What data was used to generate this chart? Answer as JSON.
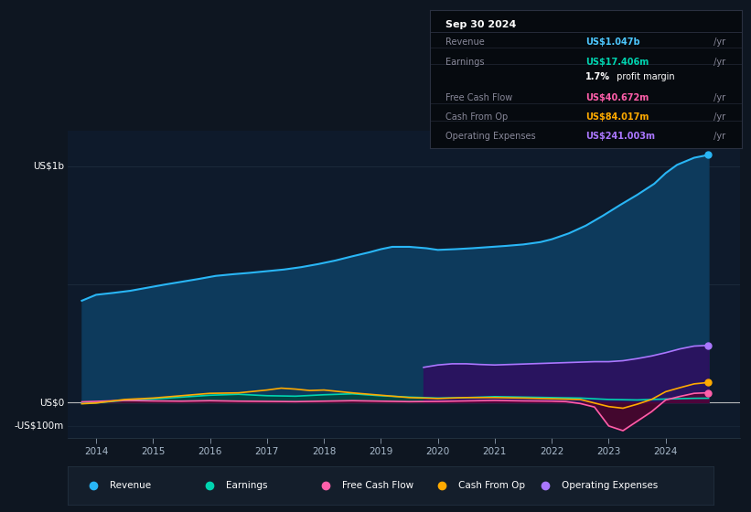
{
  "bg_color": "#0e1621",
  "plot_bg_color": "#0e1a2b",
  "title": "Sep 30 2024",
  "info_box": {
    "bg": "#060a0f",
    "title_color": "#ffffff",
    "label_color": "#888899",
    "value_color_white": "#ffffff",
    "rows": [
      {
        "label": "Revenue",
        "value": "US$1.047b",
        "suffix": " /yr",
        "value_color": "#4dc8ff"
      },
      {
        "label": "Earnings",
        "value": "US$17.406m",
        "suffix": " /yr",
        "value_color": "#00d4b0"
      },
      {
        "label": "",
        "value": "1.7%",
        "suffix": " profit margin",
        "value_color": "#ffffff"
      },
      {
        "label": "Free Cash Flow",
        "value": "US$40.672m",
        "suffix": " /yr",
        "value_color": "#ff5faa"
      },
      {
        "label": "Cash From Op",
        "value": "US$84.017m",
        "suffix": " /yr",
        "value_color": "#ffaa00"
      },
      {
        "label": "Operating Expenses",
        "value": "US$241.003m",
        "suffix": " /yr",
        "value_color": "#aa77ff"
      }
    ]
  },
  "ylabel_top": "US$1b",
  "ylabel_zero": "US$0",
  "ylabel_neg": "-US$100m",
  "xlim": [
    2013.5,
    2025.3
  ],
  "ylim": [
    -150000000,
    1150000000
  ],
  "xticks": [
    2014,
    2015,
    2016,
    2017,
    2018,
    2019,
    2020,
    2021,
    2022,
    2023,
    2024
  ],
  "revenue_color": "#29b6f6",
  "revenue_fill": "#0d3a5c",
  "earnings_color": "#00d4b0",
  "earnings_fill": "#004840",
  "fcf_color": "#ff5faa",
  "fcf_fill": "#5a0030",
  "cashop_color": "#ffaa00",
  "opex_color": "#aa77ff",
  "opex_fill": "#2d1060",
  "grid_color": "#1e2d3d",
  "zero_line_color": "#cccccc",
  "legend_bg": "#141e2b",
  "legend_border": "#22303f",
  "revenue_data_x": [
    2013.75,
    2014.0,
    2014.3,
    2014.6,
    2014.9,
    2015.2,
    2015.5,
    2015.8,
    2016.1,
    2016.4,
    2016.7,
    2017.0,
    2017.3,
    2017.6,
    2017.9,
    2018.2,
    2018.5,
    2018.8,
    2019.0,
    2019.2,
    2019.5,
    2019.8,
    2020.0,
    2020.3,
    2020.6,
    2020.9,
    2021.2,
    2021.5,
    2021.8,
    2022.0,
    2022.3,
    2022.6,
    2022.9,
    2023.2,
    2023.5,
    2023.8,
    2024.0,
    2024.2,
    2024.5,
    2024.75
  ],
  "revenue_data_y": [
    430,
    455,
    463,
    472,
    485,
    498,
    510,
    522,
    535,
    542,
    548,
    555,
    562,
    572,
    585,
    600,
    618,
    635,
    648,
    658,
    658,
    652,
    645,
    648,
    652,
    657,
    662,
    668,
    678,
    690,
    715,
    748,
    790,
    835,
    878,
    925,
    970,
    1005,
    1035,
    1047
  ],
  "earnings_data_x": [
    2013.75,
    2014.0,
    2014.5,
    2015.0,
    2015.5,
    2016.0,
    2016.5,
    2017.0,
    2017.5,
    2018.0,
    2018.5,
    2019.0,
    2019.5,
    2020.0,
    2020.5,
    2021.0,
    2021.5,
    2022.0,
    2022.5,
    2023.0,
    2023.5,
    2024.0,
    2024.5,
    2024.75
  ],
  "earnings_data_y": [
    -5,
    -2,
    8,
    14,
    22,
    30,
    34,
    28,
    26,
    32,
    36,
    28,
    22,
    18,
    20,
    24,
    22,
    20,
    18,
    12,
    10,
    14,
    17,
    17.406
  ],
  "fcf_data_x": [
    2013.75,
    2014.0,
    2014.5,
    2015.0,
    2015.5,
    2016.0,
    2016.5,
    2017.0,
    2017.5,
    2018.0,
    2018.5,
    2019.0,
    2019.5,
    2020.0,
    2020.5,
    2021.0,
    2021.5,
    2022.0,
    2022.25,
    2022.5,
    2022.75,
    2023.0,
    2023.25,
    2023.5,
    2023.75,
    2024.0,
    2024.25,
    2024.5,
    2024.75
  ],
  "fcf_data_y": [
    2,
    4,
    8,
    6,
    5,
    7,
    5,
    4,
    3,
    5,
    7,
    5,
    3,
    4,
    6,
    8,
    6,
    5,
    3,
    -5,
    -20,
    -100,
    -120,
    -80,
    -40,
    10,
    25,
    38,
    40.672
  ],
  "cashop_data_x": [
    2013.75,
    2014.0,
    2014.5,
    2015.0,
    2015.5,
    2016.0,
    2016.5,
    2017.0,
    2017.25,
    2017.5,
    2017.75,
    2018.0,
    2018.25,
    2018.5,
    2018.75,
    2019.0,
    2019.25,
    2019.5,
    2019.75,
    2020.0,
    2020.5,
    2021.0,
    2021.5,
    2022.0,
    2022.5,
    2023.0,
    2023.25,
    2023.5,
    2023.75,
    2024.0,
    2024.25,
    2024.5,
    2024.75
  ],
  "cashop_data_y": [
    -6,
    -3,
    12,
    18,
    28,
    38,
    40,
    52,
    60,
    56,
    50,
    52,
    46,
    40,
    35,
    30,
    25,
    20,
    18,
    16,
    20,
    20,
    18,
    15,
    12,
    -18,
    -25,
    -8,
    12,
    45,
    62,
    78,
    84.017
  ],
  "opex_data_x": [
    2019.75,
    2020.0,
    2020.25,
    2020.5,
    2020.75,
    2021.0,
    2021.25,
    2021.5,
    2021.75,
    2022.0,
    2022.25,
    2022.5,
    2022.75,
    2023.0,
    2023.25,
    2023.5,
    2023.75,
    2024.0,
    2024.25,
    2024.5,
    2024.75
  ],
  "opex_data_y": [
    148,
    158,
    163,
    163,
    160,
    158,
    160,
    162,
    164,
    166,
    168,
    170,
    172,
    172,
    176,
    185,
    196,
    210,
    226,
    238,
    241.003
  ]
}
